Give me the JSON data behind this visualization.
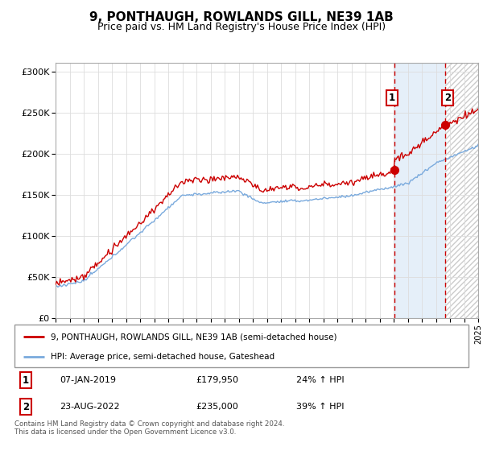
{
  "title": "9, PONTHAUGH, ROWLANDS GILL, NE39 1AB",
  "subtitle": "Price paid vs. HM Land Registry's House Price Index (HPI)",
  "legend_line1": "9, PONTHAUGH, ROWLANDS GILL, NE39 1AB (semi-detached house)",
  "legend_line2": "HPI: Average price, semi-detached house, Gateshead",
  "annotation1_date": "07-JAN-2019",
  "annotation1_price": "£179,950",
  "annotation1_hpi": "24% ↑ HPI",
  "annotation2_date": "23-AUG-2022",
  "annotation2_price": "£235,000",
  "annotation2_hpi": "39% ↑ HPI",
  "footer": "Contains HM Land Registry data © Crown copyright and database right 2024.\nThis data is licensed under the Open Government Licence v3.0.",
  "sale1_year": 2019.03,
  "sale1_value": 179950,
  "sale2_year": 2022.65,
  "sale2_value": 235000,
  "xmin": 1995,
  "xmax": 2025,
  "ymin": 0,
  "ymax": 310000,
  "red_color": "#cc0000",
  "blue_color": "#7aaadd",
  "vline_color": "#cc0000",
  "shade1_color": "#ddeeff",
  "title_fontsize": 11,
  "subtitle_fontsize": 9
}
